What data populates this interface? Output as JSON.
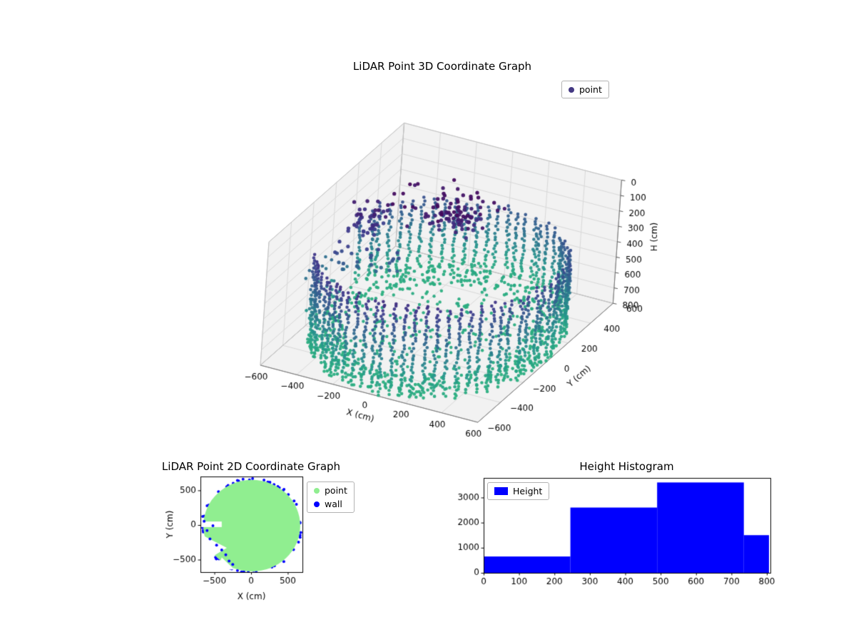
{
  "chart_data": [
    {
      "type": "scatter3d",
      "title": "LiDAR Point 3D Coordinate Graph",
      "series": [
        {
          "name": "point",
          "color": "#443983"
        }
      ],
      "axes": {
        "x": {
          "label": "X (cm)",
          "ticks": [
            -600,
            -400,
            -200,
            0,
            200,
            400,
            600
          ],
          "range": [
            -600,
            600
          ]
        },
        "y": {
          "label": "Y (cm)",
          "ticks": [
            -600,
            -400,
            -200,
            0,
            200,
            400,
            600
          ],
          "range": [
            -600,
            600
          ]
        },
        "z": {
          "label": "H (cm)",
          "ticks": [
            0,
            100,
            200,
            300,
            400,
            500,
            600,
            700,
            800
          ],
          "range": [
            0,
            800
          ],
          "inverted": true
        }
      },
      "view": {
        "elev": 30,
        "azim": -60
      },
      "colormap": {
        "maps": "H (cm) 0 -> 800",
        "stops": [
          [
            0,
            "#440154"
          ],
          [
            0.3,
            "#3e3a8c"
          ],
          [
            0.55,
            "#30688e"
          ],
          [
            0.8,
            "#26948c"
          ],
          [
            1,
            "#2ab07f"
          ]
        ]
      },
      "point_cloud": {
        "description": "Cylindrical room scan: vertical wall point columns on a ~600 cm ring, dense floor ring near H=750-800, dark scattered ceiling clutter at H=0-430, wall gap on the -X side",
        "wall_radius_cm": 600,
        "wall_columns": 72,
        "wall_top_h_cm": [
          180,
          420
        ],
        "wall_bottom_h_cm": 790,
        "wall_gap_angle_deg": [
          160,
          215
        ],
        "floor_h_cm": [
          745,
          800
        ],
        "clutter_h_cm": [
          10,
          430
        ]
      }
    },
    {
      "type": "scatter",
      "title": "LiDAR Point 2D Coordinate Graph",
      "series": [
        {
          "name": "point",
          "color": "#90ee90",
          "shape": "filled-disk",
          "center_cm": [
            10,
            -10
          ],
          "radius_cm": 660
        },
        {
          "name": "wall",
          "color": "#0000ff",
          "shape": "ring",
          "radius_cm": 670
        }
      ],
      "axes": {
        "x": {
          "label": "X (cm)",
          "ticks": [
            -500,
            0,
            500
          ],
          "range": [
            -690,
            700
          ]
        },
        "y": {
          "label": "Y (cm)",
          "ticks": [
            -500,
            0,
            500
          ],
          "range": [
            -680,
            700
          ]
        }
      },
      "notes": "green disk of points with white notch gaps on the -X side; blue wall points visible at gap edges"
    },
    {
      "type": "histogram",
      "title": "Height Histogram",
      "legend_label": "Height",
      "color": "#0000ff",
      "bin_edges": [
        0,
        245,
        490,
        735,
        806
      ],
      "counts": [
        650,
        2600,
        3600,
        1500
      ],
      "axes": {
        "x": {
          "ticks": [
            0,
            100,
            200,
            300,
            400,
            500,
            600,
            700,
            800
          ],
          "range": [
            0,
            810
          ]
        },
        "y": {
          "ticks": [
            0,
            1000,
            2000,
            3000
          ],
          "range": [
            0,
            3780
          ]
        }
      }
    }
  ]
}
